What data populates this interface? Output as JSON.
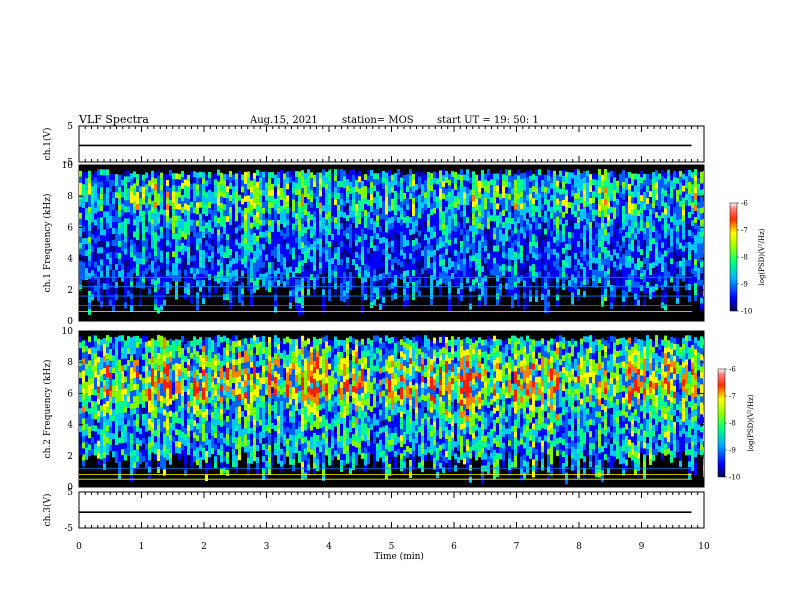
{
  "header": {
    "title": "VLF Spectra",
    "date": "Aug.15, 2021",
    "station": "station= MOS",
    "start": "start UT =  19: 50: 1"
  },
  "chart_data": [
    {
      "type": "line",
      "panel": "ch.1(V)",
      "ylabel": "ch.1(V)",
      "ylim": [
        -5,
        5
      ],
      "yticks": [
        "5",
        "-5"
      ],
      "series": [
        {
          "values": [
            -0.4,
            -0.4,
            -0.4,
            -0.4,
            -0.4,
            -0.4,
            -0.4,
            -0.4,
            -0.4,
            -0.4,
            -0.4
          ]
        }
      ],
      "x": [
        0,
        1,
        2,
        3,
        4,
        5,
        6,
        7,
        8,
        9,
        9.8
      ]
    },
    {
      "type": "heatmap",
      "panel": "ch.1",
      "ylabel": "ch.1 Frequency (kHz)",
      "ylim": [
        0,
        10
      ],
      "yticks": [
        "0",
        "2",
        "4",
        "6",
        "8",
        "10"
      ],
      "colorbar": {
        "label": "log(PSD)(V²/Hz)",
        "ticks": [
          "-6",
          "-7",
          "-8",
          "-9",
          "-10"
        ],
        "range": [
          -10,
          -6
        ]
      },
      "intensity": "moderate",
      "band_khz": [
        0.8,
        9.6
      ]
    },
    {
      "type": "heatmap",
      "panel": "ch.2",
      "ylabel": "ch.2 Frequency (kHz)",
      "ylim": [
        0,
        10
      ],
      "yticks": [
        "0",
        "2",
        "4",
        "6",
        "8",
        "10"
      ],
      "colorbar": {
        "label": "log(PSD)(V²/Hz)",
        "ticks": [
          "-6",
          "-7",
          "-8",
          "-9",
          "-10"
        ],
        "range": [
          -10,
          -6
        ]
      },
      "intensity": "strong",
      "band_khz": [
        1.0,
        9.8
      ]
    },
    {
      "type": "line",
      "panel": "ch.3(V)",
      "ylabel": "ch.3(V)",
      "ylim": [
        -5,
        5
      ],
      "yticks": [
        "5",
        "-5"
      ],
      "series": [
        {
          "values": [
            -0.6,
            -0.6,
            -0.6,
            -0.6,
            -0.6,
            -0.6,
            -0.6,
            -0.6,
            -0.6,
            -0.6,
            -0.6
          ]
        }
      ],
      "x": [
        0,
        1,
        2,
        3,
        4,
        5,
        6,
        7,
        8,
        9,
        9.8
      ]
    }
  ],
  "xaxis": {
    "label": "Time (min)",
    "xlim": [
      0,
      10
    ],
    "ticks": [
      "0",
      "1",
      "2",
      "3",
      "4",
      "5",
      "6",
      "7",
      "8",
      "9",
      "10"
    ]
  }
}
